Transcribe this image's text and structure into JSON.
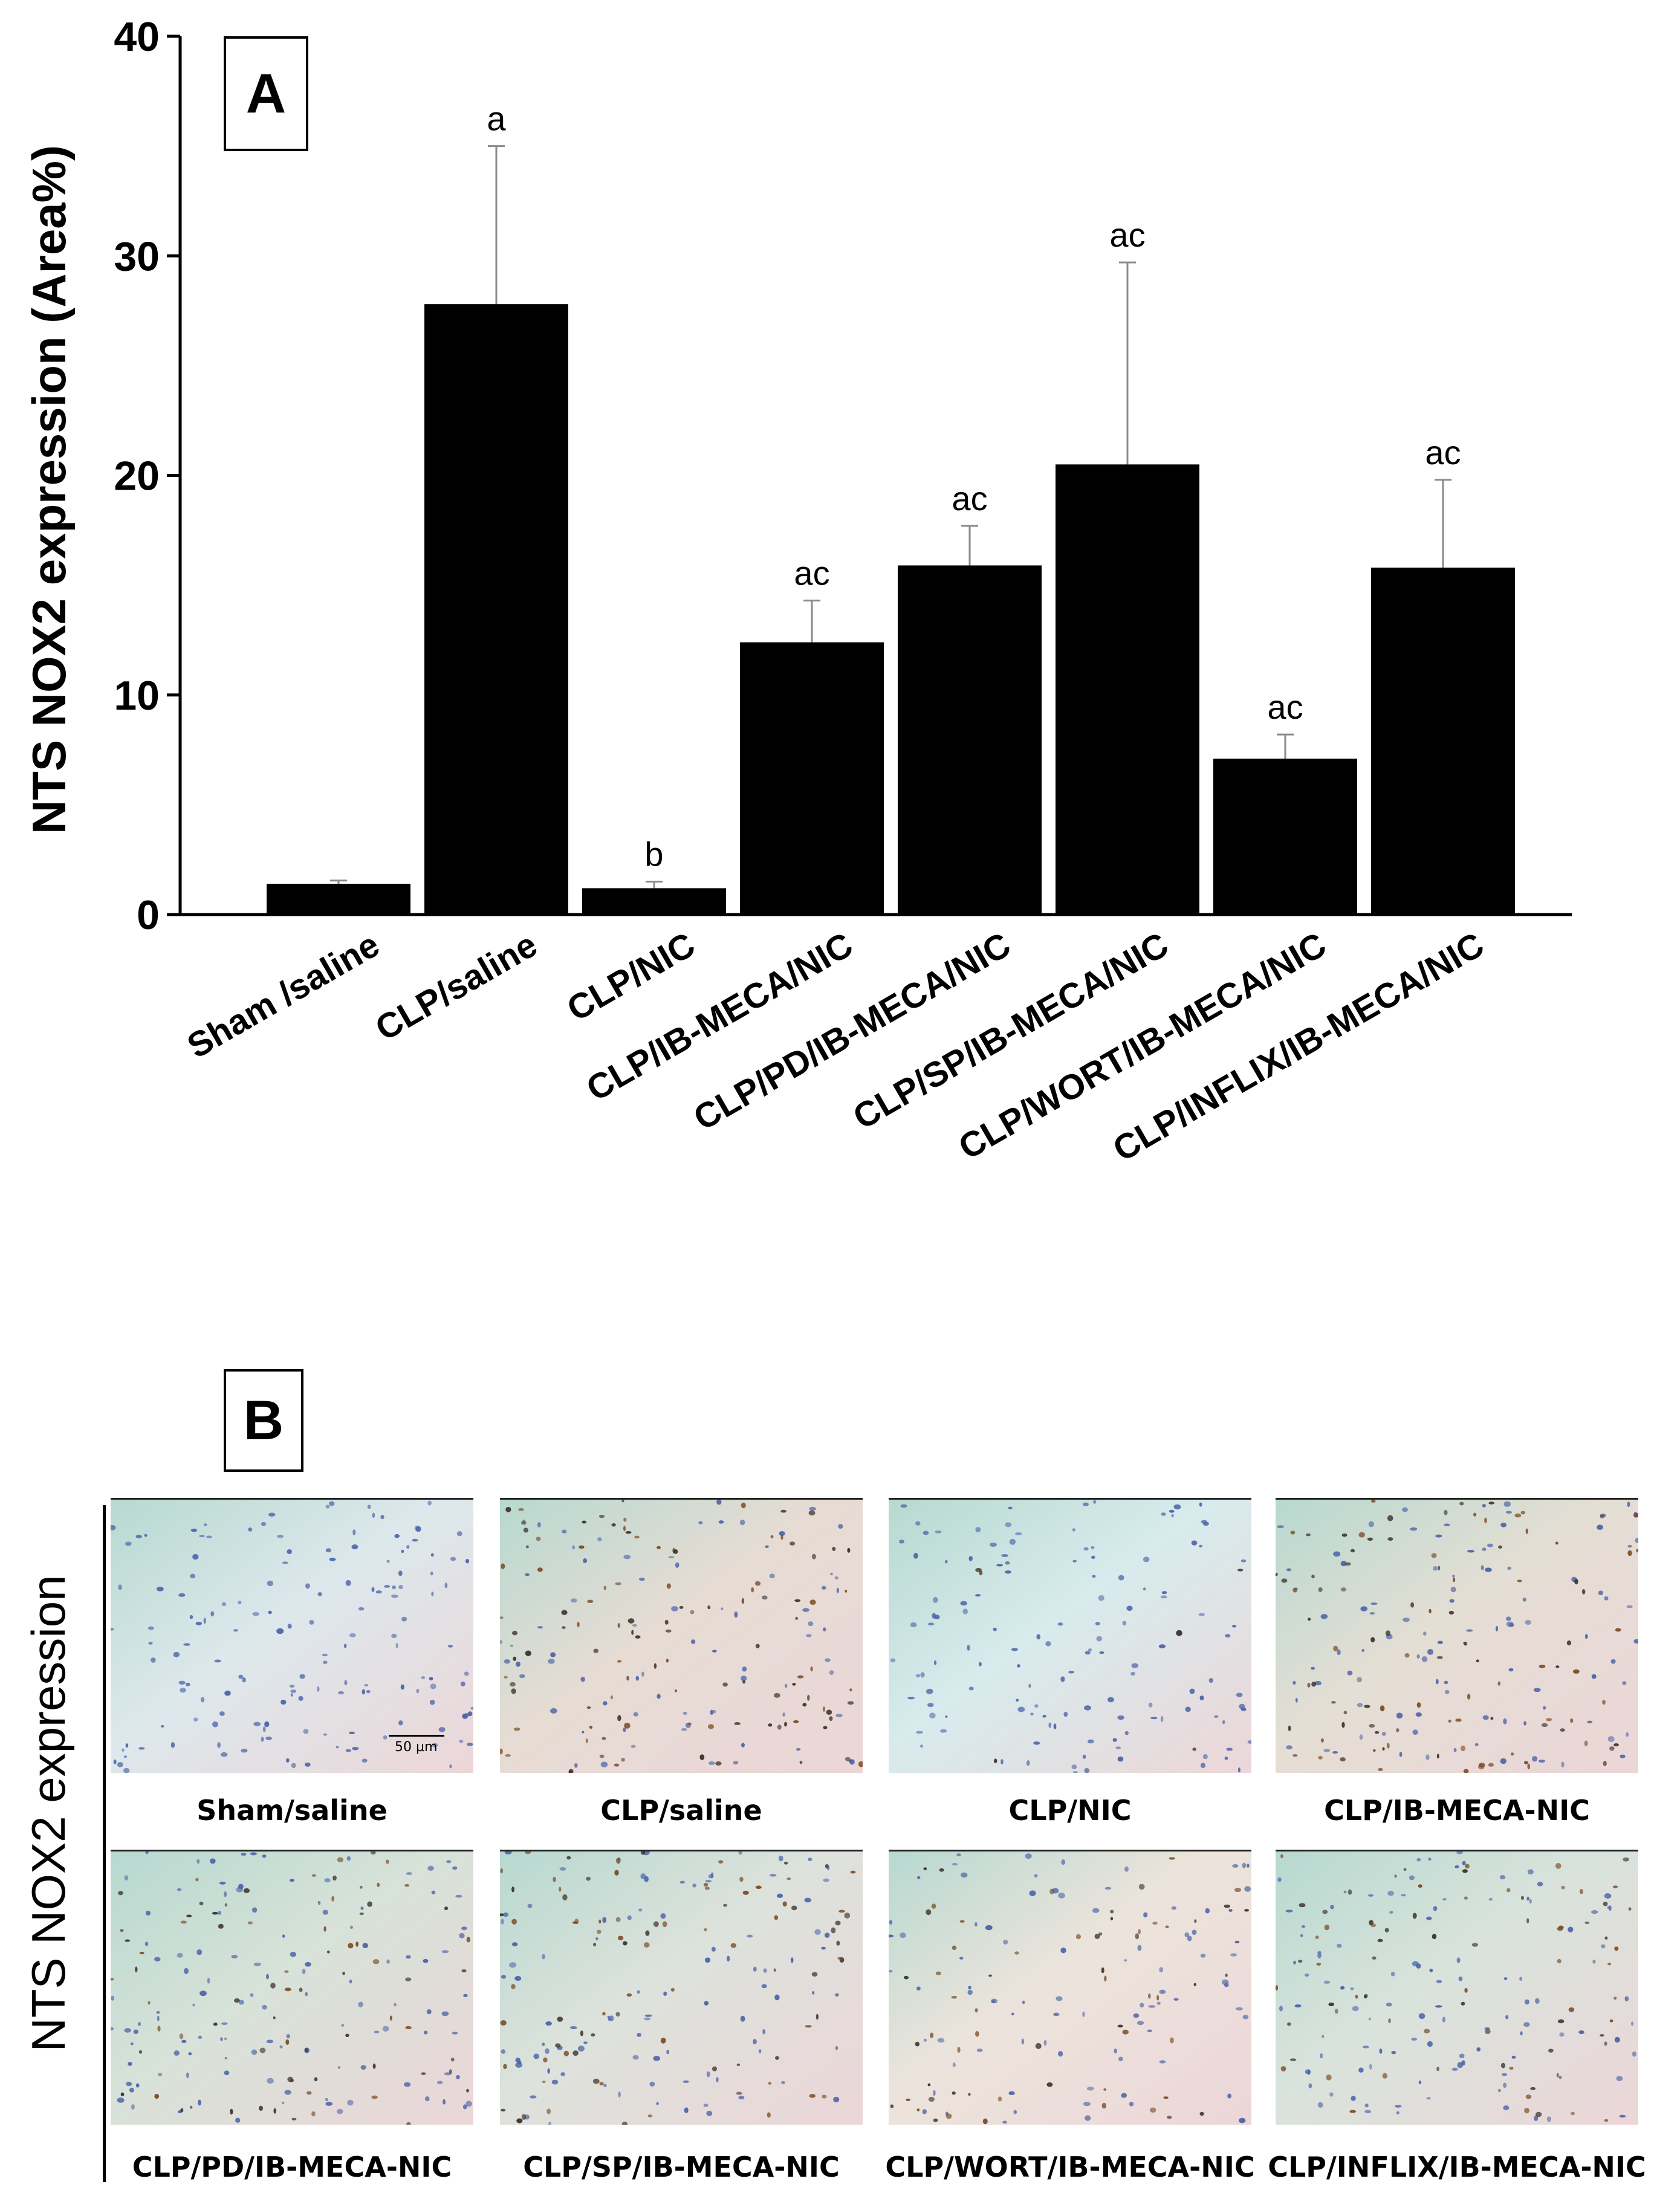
{
  "chart_data": {
    "type": "bar",
    "title": "",
    "panel_label": "A",
    "ylabel": "NTS NOX2 expression (Area%)",
    "xlabel": "",
    "ylim": [
      0,
      40
    ],
    "yticks": [
      0,
      10,
      20,
      30,
      40
    ],
    "categories": [
      "Sham /saline",
      "CLP/saline",
      "CLP/NIC",
      "CLP/IB-MECA/NIC",
      "CLP/PD/IB-MECA/NIC",
      "CLP/SP/IB-MECA/NIC",
      "CLP/WORT/IB-MECA/NIC",
      "CLP/INFLIX/IB-MECA/NIC"
    ],
    "values": [
      1.4,
      27.8,
      1.2,
      12.4,
      15.9,
      20.5,
      7.1,
      15.8
    ],
    "errors": [
      0.15,
      7.2,
      0.3,
      1.9,
      1.8,
      9.2,
      1.1,
      4.0
    ],
    "significance": [
      "",
      "a",
      "b",
      "ac",
      "ac",
      "ac",
      "ac",
      "ac"
    ],
    "bar_color": "#000000",
    "error_color": "#8a8a8a"
  },
  "panel_b": {
    "label": "B",
    "ylabel": "NTS NOX2 expression",
    "scale_bar": "50 µm",
    "images": [
      {
        "caption": "Sham/saline",
        "brown": 0.0,
        "blue": 1.0,
        "tone": "#dde8ec"
      },
      {
        "caption": "CLP/saline",
        "brown": 0.9,
        "blue": 0.3,
        "tone": "#e6dcd4"
      },
      {
        "caption": "CLP/NIC",
        "brown": 0.05,
        "blue": 0.8,
        "tone": "#d8ebed"
      },
      {
        "caption": "CLP/IB-MECA-NIC",
        "brown": 0.8,
        "blue": 0.5,
        "tone": "#e4ded4"
      },
      {
        "caption": "CLP/PD/IB-MECA-NIC",
        "brown": 0.6,
        "blue": 0.7,
        "tone": "#d7e2d8"
      },
      {
        "caption": "CLP/SP/IB-MECA-NIC",
        "brown": 0.7,
        "blue": 0.5,
        "tone": "#dde2dc"
      },
      {
        "caption": "CLP/WORT/IB-MECA-NIC",
        "brown": 0.5,
        "blue": 0.4,
        "tone": "#ece4dc"
      },
      {
        "caption": "CLP/INFLIX/IB-MECA-NIC",
        "brown": 0.6,
        "blue": 0.6,
        "tone": "#d9e3dc"
      }
    ]
  }
}
